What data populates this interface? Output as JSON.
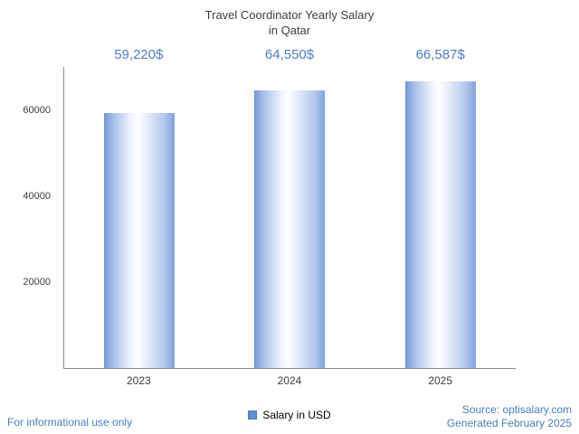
{
  "title": {
    "line1": "Travel Coordinator Yearly Salary",
    "line2": "in Qatar"
  },
  "chart_data": {
    "type": "bar",
    "title": "Travel Coordinator Yearly Salary in Qatar",
    "categories": [
      "2023",
      "2024",
      "2025"
    ],
    "values": [
      59220,
      64550,
      66587
    ],
    "value_labels": [
      "59,220$",
      "64,550$",
      "66,587$"
    ],
    "series_name": "Salary in USD",
    "xlabel": "",
    "ylabel": "",
    "ylim": [
      0,
      70000
    ],
    "yticks": [
      20000,
      40000,
      60000
    ],
    "ytick_labels": [
      "20000",
      "40000",
      "60000"
    ],
    "grid": false,
    "legend_position": "bottom"
  },
  "legend": {
    "label": "Salary in USD"
  },
  "footer": {
    "left": "For informational use only",
    "source": "Source: optisalary.com",
    "generated": "Generated February 2025"
  },
  "colors": {
    "title_text": "#3f3f3f",
    "value_label_text": "#4a7ebf",
    "axis_line": "#8a8a8a",
    "tick_text": "#3d3d3d",
    "footer_text": "#4a7ebf",
    "bar_edge": "#7396d6",
    "bar_center": "#ffffff",
    "legend_swatch": "#638fd2"
  }
}
